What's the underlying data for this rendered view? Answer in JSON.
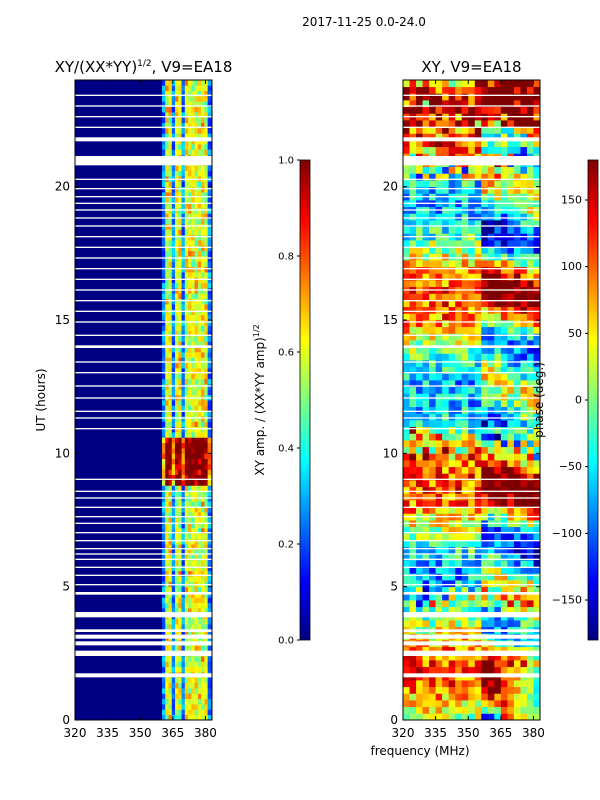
{
  "figure": {
    "suptitle": "2017-11-25 0.0-24.0",
    "shared_xlabel": "frequency (MHz)"
  },
  "colors": {
    "jet": [
      "#00007f",
      "#0000ff",
      "#007fff",
      "#00ffff",
      "#7fff7f",
      "#ffff00",
      "#ff7f00",
      "#ff0000",
      "#7f0000"
    ],
    "background_deep": "#000085"
  },
  "chart_data": [
    {
      "type": "heatmap",
      "panel": "amplitude-ratio",
      "title_main": "XY/(XX*YY)",
      "title_sup": "1/2",
      "title_tail": ", V9=EA18",
      "xlabel": "",
      "ylabel": "UT (hours)",
      "xlim": [
        320,
        383
      ],
      "ylim": [
        0,
        24
      ],
      "x_ticks": [
        "320",
        "335",
        "350",
        "365",
        "380"
      ],
      "y_ticks": [
        "0",
        "5",
        "10",
        "15",
        "20"
      ],
      "bright_band_MHz": [
        360,
        382
      ],
      "bright_channels_MHz": [
        362,
        367,
        371,
        375,
        379
      ],
      "enhanced_interval_hours": [
        8.7,
        10.6
      ],
      "colorbar": {
        "label_main": "XY amp. / (XX*YY amp)",
        "label_sup": "1/2",
        "range": [
          0.0,
          1.0
        ],
        "ticks": [
          "0.0",
          "0.2",
          "0.4",
          "0.6",
          "0.8",
          "1.0"
        ]
      }
    },
    {
      "type": "heatmap",
      "panel": "phase",
      "title_main": "XY, V9=EA18",
      "xlabel": "frequency (MHz)",
      "ylabel": "",
      "xlim": [
        320,
        383
      ],
      "ylim": [
        0,
        24
      ],
      "x_ticks": [
        "320",
        "335",
        "350",
        "365",
        "380"
      ],
      "y_ticks": [
        "0",
        "5",
        "10",
        "15",
        "20"
      ],
      "colorbar": {
        "label_main": "phase (deg.)",
        "range": [
          -180,
          180
        ],
        "ticks": [
          "−150",
          "−100",
          "−50",
          "0",
          "50",
          "100",
          "150"
        ]
      }
    }
  ],
  "flagged_intervals_hours": [
    [
      1.6,
      1.75
    ],
    [
      2.4,
      2.6
    ],
    [
      2.8,
      2.95
    ],
    [
      3.05,
      3.2
    ],
    [
      3.3,
      3.4
    ],
    [
      3.85,
      4.05
    ],
    [
      4.7,
      4.8
    ],
    [
      5.05,
      5.1
    ],
    [
      5.4,
      5.45
    ],
    [
      5.7,
      5.75
    ],
    [
      6.0,
      6.05
    ],
    [
      6.2,
      6.25
    ],
    [
      6.4,
      6.45
    ],
    [
      6.7,
      6.75
    ],
    [
      7.0,
      7.05
    ],
    [
      7.35,
      7.4
    ],
    [
      7.6,
      7.65
    ],
    [
      7.95,
      8.0
    ],
    [
      8.3,
      8.35
    ],
    [
      8.55,
      8.6
    ],
    [
      9.0,
      9.05
    ],
    [
      10.9,
      10.95
    ],
    [
      11.3,
      11.35
    ],
    [
      11.55,
      11.6
    ],
    [
      12.05,
      12.1
    ],
    [
      12.5,
      12.55
    ],
    [
      13.0,
      13.05
    ],
    [
      13.4,
      13.45
    ],
    [
      13.95,
      14.05
    ],
    [
      14.4,
      14.45
    ],
    [
      14.9,
      14.95
    ],
    [
      15.3,
      15.35
    ],
    [
      15.7,
      15.75
    ],
    [
      16.1,
      16.15
    ],
    [
      16.5,
      16.55
    ],
    [
      16.9,
      16.95
    ],
    [
      17.3,
      17.35
    ],
    [
      17.7,
      17.75
    ],
    [
      18.1,
      18.15
    ],
    [
      18.5,
      18.55
    ],
    [
      18.8,
      18.85
    ],
    [
      19.1,
      19.15
    ],
    [
      19.35,
      19.4
    ],
    [
      19.6,
      19.65
    ],
    [
      19.9,
      19.95
    ],
    [
      20.25,
      20.3
    ],
    [
      20.8,
      21.15
    ],
    [
      21.7,
      21.85
    ],
    [
      22.2,
      22.25
    ],
    [
      22.6,
      22.65
    ],
    [
      23.0,
      23.05
    ],
    [
      23.4,
      23.45
    ]
  ]
}
